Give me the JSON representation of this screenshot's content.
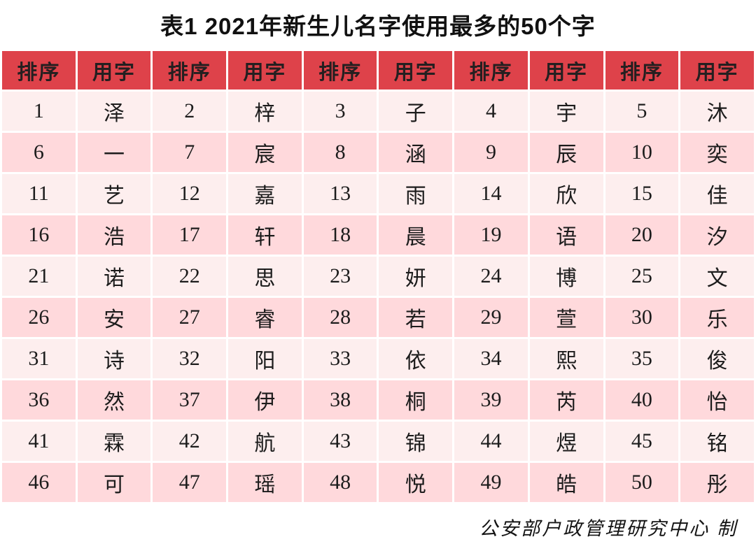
{
  "chart_data": {
    "type": "table",
    "title": "表1  2021年新生儿名字使用最多的50个字",
    "columns": [
      "排序",
      "用字",
      "排序",
      "用字",
      "排序",
      "用字",
      "排序",
      "用字",
      "排序",
      "用字"
    ],
    "rows": [
      [
        "1",
        "泽",
        "2",
        "梓",
        "3",
        "子",
        "4",
        "宇",
        "5",
        "沐"
      ],
      [
        "6",
        "一",
        "7",
        "宸",
        "8",
        "涵",
        "9",
        "辰",
        "10",
        "奕"
      ],
      [
        "11",
        "艺",
        "12",
        "嘉",
        "13",
        "雨",
        "14",
        "欣",
        "15",
        "佳"
      ],
      [
        "16",
        "浩",
        "17",
        "轩",
        "18",
        "晨",
        "19",
        "语",
        "20",
        "汐"
      ],
      [
        "21",
        "诺",
        "22",
        "思",
        "23",
        "妍",
        "24",
        "博",
        "25",
        "文"
      ],
      [
        "26",
        "安",
        "27",
        "睿",
        "28",
        "若",
        "29",
        "萱",
        "30",
        "乐"
      ],
      [
        "31",
        "诗",
        "32",
        "阳",
        "33",
        "依",
        "34",
        "熙",
        "35",
        "俊"
      ],
      [
        "36",
        "然",
        "37",
        "伊",
        "38",
        "桐",
        "39",
        "芮",
        "40",
        "怡"
      ],
      [
        "41",
        "霖",
        "42",
        "航",
        "43",
        "锦",
        "44",
        "煜",
        "45",
        "铭"
      ],
      [
        "46",
        "可",
        "47",
        "瑶",
        "48",
        "悦",
        "49",
        "皓",
        "50",
        "彤"
      ]
    ],
    "source_note": "公安部户政管理研究中心 制",
    "layout": {
      "columns_count": 10,
      "rows_count": 10,
      "grid": "white separators",
      "row_striping": "alternating light pink / pink"
    }
  },
  "colors": {
    "header_bg": "#DE424A",
    "row_light": "#FDEEEE",
    "row_pink": "#FFD9DC",
    "grid_border": "#FFFFFF",
    "text": "#1C1C1C"
  }
}
